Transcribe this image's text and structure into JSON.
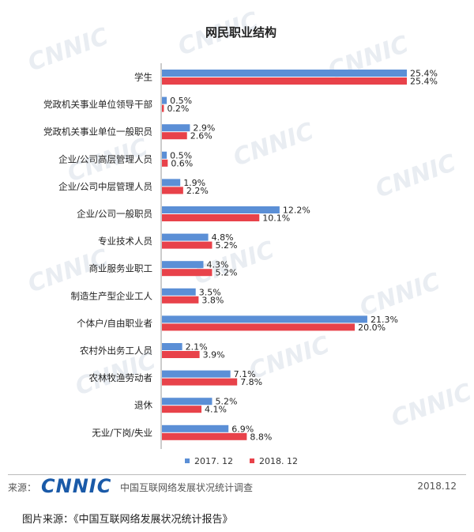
{
  "chart_data": {
    "type": "bar",
    "orientation": "horizontal",
    "title": "网民职业结构",
    "categories": [
      "学生",
      "党政机关事业单位领导干部",
      "党政机关事业单位一般职员",
      "企业/公司高层管理人员",
      "企业/公司中层管理人员",
      "企业/公司一般职员",
      "专业技术人员",
      "商业服务业职工",
      "制造生产型企业工人",
      "个体户/自由职业者",
      "农村外出务工人员",
      "农林牧渔劳动者",
      "退休",
      "无业/下岗/失业"
    ],
    "series": [
      {
        "name": "2017. 12",
        "color": "#5b8fd6",
        "values": [
          25.4,
          0.5,
          2.9,
          0.5,
          1.9,
          12.2,
          4.8,
          4.3,
          3.5,
          21.3,
          2.1,
          7.1,
          5.2,
          6.9
        ],
        "labels": [
          "25.4%",
          "0.5%",
          "2.9%",
          "0.5%",
          "1.9%",
          "12.2%",
          "4.8%",
          "4.3%",
          "3.5%",
          "21.3%",
          "2.1%",
          "7.1%",
          "5.2%",
          "6.9%"
        ]
      },
      {
        "name": "2018. 12",
        "color": "#e8424a",
        "values": [
          25.4,
          0.2,
          2.6,
          0.6,
          2.2,
          10.1,
          5.2,
          5.2,
          3.8,
          20.0,
          3.9,
          7.8,
          4.1,
          8.8
        ],
        "labels": [
          "25.4%",
          "0.2%",
          "2.6%",
          "0.6%",
          "2.2%",
          "10.1%",
          "5.2%",
          "5.2%",
          "3.8%",
          "20.0%",
          "3.9%",
          "7.8%",
          "4.1%",
          "8.8%"
        ]
      }
    ],
    "xlim": [
      0,
      25.4
    ],
    "legend_position": "bottom-center",
    "grid": false
  },
  "watermark_text": "CNNIC",
  "footer": {
    "source_label": "来源：",
    "logo": "CNNIC",
    "org": "中国互联网络发展状况统计调查",
    "date": "2018.12"
  },
  "caption": "图片来源：《中国互联网络发展状况统计报告》"
}
